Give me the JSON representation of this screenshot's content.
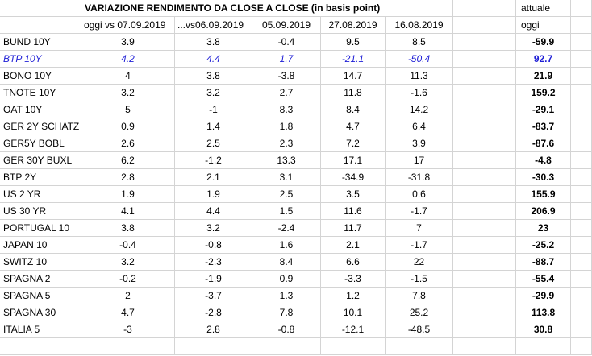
{
  "header": {
    "title": "VARIAZIONE RENDIMENTO DA CLOSE A CLOSE (in basis point)",
    "current_label": "attuale",
    "col_labels": [
      "oggi vs 07.09.2019",
      "...vs06.09.2019",
      "05.09.2019",
      "27.08.2019",
      "16.08.2019"
    ],
    "current_sub": "oggi"
  },
  "rows": [
    {
      "name": "BUND 10Y",
      "v": [
        "3.9",
        "3.8",
        "-0.4",
        "9.5",
        "8.5"
      ],
      "cur": "-59.9"
    },
    {
      "name": "BTP 10Y",
      "v": [
        "4.2",
        "4.4",
        "1.7",
        "-21.1",
        "-50.4"
      ],
      "cur": "92.7"
    },
    {
      "name": "BONO 10Y",
      "v": [
        "4",
        "3.8",
        "-3.8",
        "14.7",
        "11.3"
      ],
      "cur": "21.9"
    },
    {
      "name": "TNOTE 10Y",
      "v": [
        "3.2",
        "3.2",
        "2.7",
        "11.8",
        "-1.6"
      ],
      "cur": "159.2"
    },
    {
      "name": "OAT 10Y",
      "v": [
        "5",
        "-1",
        "8.3",
        "8.4",
        "14.2"
      ],
      "cur": "-29.1"
    },
    {
      "name": "GER 2Y SCHATZ",
      "v": [
        "0.9",
        "1.4",
        "1.8",
        "4.7",
        "6.4"
      ],
      "cur": "-83.7"
    },
    {
      "name": "GER5Y BOBL",
      "v": [
        "2.6",
        "2.5",
        "2.3",
        "7.2",
        "3.9"
      ],
      "cur": "-87.6"
    },
    {
      "name": "GER 30Y BUXL",
      "v": [
        "6.2",
        "-1.2",
        "13.3",
        "17.1",
        "17"
      ],
      "cur": "-4.8"
    },
    {
      "name": "BTP 2Y",
      "v": [
        "2.8",
        "2.1",
        "3.1",
        "-34.9",
        "-31.8"
      ],
      "cur": "-30.3"
    },
    {
      "name": "US 2 YR",
      "v": [
        "1.9",
        "1.9",
        "2.5",
        "3.5",
        "0.6"
      ],
      "cur": "155.9"
    },
    {
      "name": "US 30 YR",
      "v": [
        "4.1",
        "4.4",
        "1.5",
        "11.6",
        "-1.7"
      ],
      "cur": "206.9"
    },
    {
      "name": "PORTUGAL 10",
      "v": [
        "3.8",
        "3.2",
        "-2.4",
        "11.7",
        "7"
      ],
      "cur": "23"
    },
    {
      "name": "JAPAN 10",
      "v": [
        "-0.4",
        "-0.8",
        "1.6",
        "2.1",
        "-1.7"
      ],
      "cur": "-25.2"
    },
    {
      "name": "SWITZ 10",
      "v": [
        "3.2",
        "-2.3",
        "8.4",
        "6.6",
        "22"
      ],
      "cur": "-88.7"
    },
    {
      "name": "SPAGNA 2",
      "v": [
        "-0.2",
        "-1.9",
        "0.9",
        "-3.3",
        "-1.5"
      ],
      "cur": "-55.4"
    },
    {
      "name": "SPAGNA 5",
      "v": [
        "2",
        "-3.7",
        "1.3",
        "1.2",
        "7.8"
      ],
      "cur": "-29.9"
    },
    {
      "name": "SPAGNA 30",
      "v": [
        "4.7",
        "-2.8",
        "7.8",
        "10.1",
        "25.2"
      ],
      "cur": "113.8"
    },
    {
      "name": "ITALIA 5",
      "v": [
        "-3",
        "2.8",
        "-0.8",
        "-12.1",
        "-48.5"
      ],
      "cur": "30.8"
    }
  ],
  "colors": {
    "highlight": "#1f1fd6",
    "grid": "#d4d4d4"
  }
}
